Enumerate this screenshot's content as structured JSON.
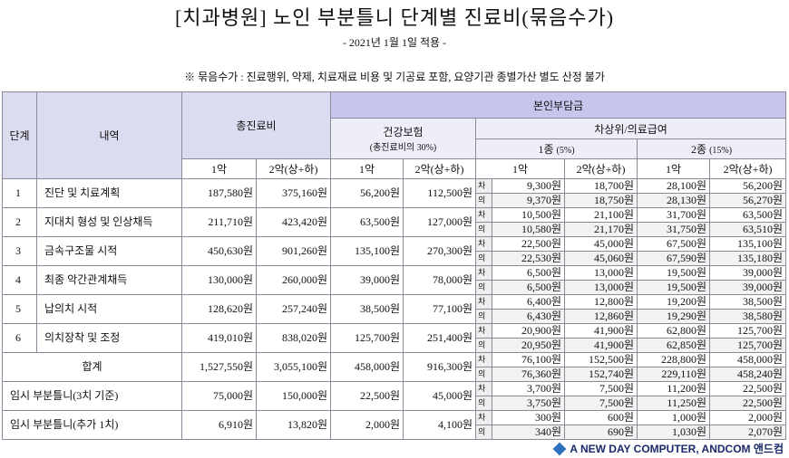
{
  "header": {
    "title": "[치과병원] 노인 부분틀니 단계별 진료비(묶음수가)",
    "subtitle": "- 2021년 1월 1일 적용 -",
    "note": "※ 묶음수가 : 진료행위, 약제, 치료재료 비용 및 기공료 포함, 요양기관 종별가산 별도 산정 불가"
  },
  "table": {
    "head": {
      "step": "단계",
      "item": "내역",
      "total": "총진료비",
      "copay": "본인부담금",
      "insurance": "건강보험",
      "insurance_note": "(총진료비의 30%)",
      "low_income": "차상위/의료급여",
      "type1": "1종",
      "type1_rate": "(5%)",
      "type2": "2종",
      "type2_rate": "(15%)",
      "sub": [
        "1악",
        "2악(상+하)",
        "1악",
        "2악(상+하)",
        "1악",
        "2악(상+하)",
        "1악",
        "2악(상+하)"
      ]
    },
    "rows": [
      {
        "step": "1",
        "item": "진단 및 치료계획",
        "cells": [
          "187,580원",
          "375,160원",
          "56,200원",
          "112,500원"
        ],
        "sub": [
          {
            "kind": "차",
            "values": [
              "9,300원",
              "18,700원",
              "28,100원",
              "56,200원"
            ]
          },
          {
            "kind": "의",
            "values": [
              "9,370원",
              "18,750원",
              "28,130원",
              "56,270원"
            ]
          }
        ]
      },
      {
        "step": "2",
        "item": "지대치 형성 및 인상채득",
        "cells": [
          "211,710원",
          "423,420원",
          "63,500원",
          "127,000원"
        ],
        "sub": [
          {
            "kind": "차",
            "values": [
              "10,500원",
              "21,100원",
              "31,700원",
              "63,500원"
            ]
          },
          {
            "kind": "의",
            "values": [
              "10,580원",
              "21,170원",
              "31,750원",
              "63,510원"
            ]
          }
        ]
      },
      {
        "step": "3",
        "item": "금속구조물 시적",
        "cells": [
          "450,630원",
          "901,260원",
          "135,100원",
          "270,300원"
        ],
        "sub": [
          {
            "kind": "차",
            "values": [
              "22,500원",
              "45,000원",
              "67,500원",
              "135,100원"
            ]
          },
          {
            "kind": "의",
            "values": [
              "22,530원",
              "45,060원",
              "67,590원",
              "135,180원"
            ]
          }
        ]
      },
      {
        "step": "4",
        "item": "최종 악간관계채득",
        "cells": [
          "130,000원",
          "260,000원",
          "39,000원",
          "78,000원"
        ],
        "sub": [
          {
            "kind": "차",
            "values": [
              "6,500원",
              "13,000원",
              "19,500원",
              "39,000원"
            ]
          },
          {
            "kind": "의",
            "values": [
              "6,500원",
              "13,000원",
              "19,500원",
              "39,000원"
            ]
          }
        ]
      },
      {
        "step": "5",
        "item": "납의치 시적",
        "cells": [
          "128,620원",
          "257,240원",
          "38,500원",
          "77,100원"
        ],
        "sub": [
          {
            "kind": "차",
            "values": [
              "6,400원",
              "12,800원",
              "19,200원",
              "38,500원"
            ]
          },
          {
            "kind": "의",
            "values": [
              "6,430원",
              "12,860원",
              "19,290원",
              "38,580원"
            ]
          }
        ]
      },
      {
        "step": "6",
        "item": "의치장착 및 조정",
        "cells": [
          "419,010원",
          "838,020원",
          "125,700원",
          "251,400원"
        ],
        "sub": [
          {
            "kind": "차",
            "values": [
              "20,900원",
              "41,900원",
              "62,800원",
              "125,700원"
            ]
          },
          {
            "kind": "의",
            "values": [
              "20,950원",
              "41,900원",
              "62,850원",
              "125,700원"
            ]
          }
        ]
      },
      {
        "item": "합계",
        "cells": [
          "1,527,550원",
          "3,055,100원",
          "458,000원",
          "916,300원"
        ],
        "sub": [
          {
            "kind": "차",
            "values": [
              "76,100원",
              "152,500원",
              "228,800원",
              "458,000원"
            ]
          },
          {
            "kind": "의",
            "values": [
              "76,360원",
              "152,740원",
              "229,110원",
              "458,240원"
            ]
          }
        ]
      },
      {
        "item": "임시 부분틀니(3치 기준)",
        "cells": [
          "75,000원",
          "150,000원",
          "22,500원",
          "45,000원"
        ],
        "sub": [
          {
            "kind": "차",
            "values": [
              "3,700원",
              "7,500원",
              "11,200원",
              "22,500원"
            ]
          },
          {
            "kind": "의",
            "values": [
              "3,750원",
              "7,500원",
              "11,250원",
              "22,500원"
            ]
          }
        ]
      },
      {
        "item": "임시 부분틀니(추가 1치)",
        "cells": [
          "6,910원",
          "13,820원",
          "2,000원",
          "4,100원"
        ],
        "sub": [
          {
            "kind": "차",
            "values": [
              "300원",
              "600원",
              "1,000원",
              "2,000원"
            ]
          },
          {
            "kind": "의",
            "values": [
              "340원",
              "690원",
              "1,030원",
              "2,070원"
            ]
          }
        ]
      }
    ]
  },
  "footer": {
    "logo": "A NEW DAY COMPUTER, ANDCOM 앤드컴"
  }
}
